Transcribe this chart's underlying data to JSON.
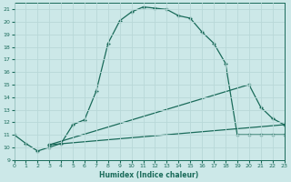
{
  "xlabel": "Humidex (Indice chaleur)",
  "bg_color": "#cce8e8",
  "grid_color": "#b8d8d8",
  "line_color": "#1a6b5a",
  "xlim": [
    0,
    23
  ],
  "ylim": [
    9,
    21.5
  ],
  "xticks": [
    0,
    1,
    2,
    3,
    4,
    5,
    6,
    7,
    8,
    9,
    10,
    11,
    12,
    13,
    14,
    15,
    16,
    17,
    18,
    19,
    20,
    21,
    22,
    23
  ],
  "yticks": [
    9,
    10,
    11,
    12,
    13,
    14,
    15,
    16,
    17,
    18,
    19,
    20,
    21
  ],
  "curve1_x": [
    0,
    1,
    2,
    3,
    4,
    5,
    6,
    7,
    8,
    9,
    10,
    11,
    12,
    13,
    14,
    15,
    16,
    17,
    18,
    19,
    20,
    21,
    22,
    23
  ],
  "curve1_y": [
    11.0,
    10.3,
    9.7,
    10.0,
    10.3,
    11.8,
    12.2,
    14.5,
    18.3,
    20.1,
    20.8,
    21.2,
    21.1,
    21.0,
    20.5,
    20.3,
    19.2,
    18.3,
    16.7,
    11.0,
    11.0,
    11.0,
    11.0,
    11.0
  ],
  "curve2_x": [
    3,
    20,
    21,
    22,
    23
  ],
  "curve2_y": [
    10.2,
    15.0,
    13.2,
    12.3,
    11.8
  ],
  "curve3_x": [
    3,
    23
  ],
  "curve3_y": [
    10.2,
    11.8
  ]
}
